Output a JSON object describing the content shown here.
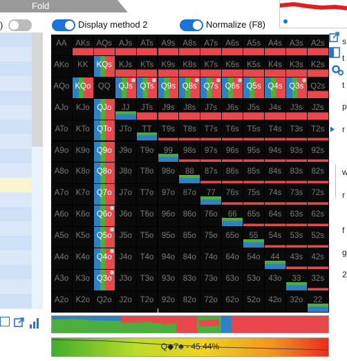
{
  "top": {
    "fold_label": "Fold"
  },
  "toggles": {
    "left_suffix": ")",
    "display_method": "Display method 2",
    "normalize": "Normalize (F8)"
  },
  "colors": {
    "raise": "#e8474c",
    "call": "#4cae3f",
    "fold": "#2f7fc1",
    "allin": "#7a1f25",
    "empty": "#8a1c1c",
    "highlight_blue": "#1a73d9"
  },
  "grid": {
    "ranks": [
      "A",
      "K",
      "Q",
      "J",
      "T",
      "9",
      "8",
      "7",
      "6",
      "5",
      "4",
      "3",
      "2"
    ],
    "highlighted": [
      "KQs",
      "KQo",
      "QJs",
      "QTs",
      "Q9s",
      "Q8s",
      "Q7s",
      "Q6s",
      "Q5s",
      "Q4s",
      "Q3s",
      "QJo",
      "QTo",
      "Q9o",
      "Q8o",
      "Q7o",
      "Q6o",
      "Q5o",
      "Q4o",
      "Q3o"
    ],
    "dotted": [
      "QJs",
      "QTs",
      "Q8s",
      "Q7s",
      "Q6s",
      "Q3s",
      "Q6o",
      "Q5o",
      "Q4o",
      "Q3o"
    ]
  },
  "right_panel": {
    "letters": [
      "s",
      "t",
      "t",
      "p",
      "r",
      "w",
      "r",
      "f",
      "g",
      "2"
    ]
  },
  "equity": {
    "label": "Q◆7♣ - 45.44%"
  }
}
